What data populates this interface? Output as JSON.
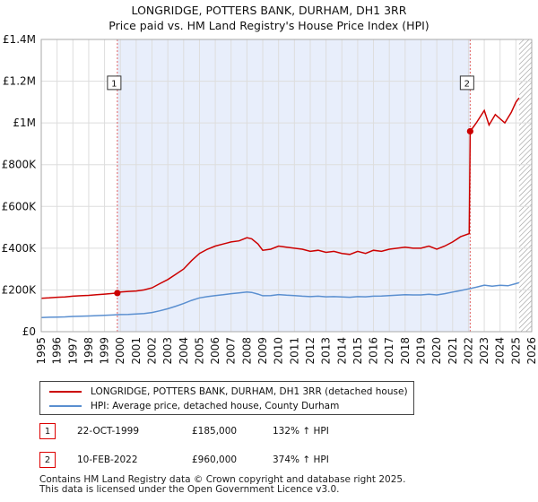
{
  "chart_data": {
    "type": "line",
    "title": "LONGRIDGE, POTTERS BANK, DURHAM, DH1 3RR",
    "subtitle": "Price paid vs. HM Land Registry's House Price Index (HPI)",
    "xlabel": "",
    "ylabel": "",
    "xlim": [
      1995,
      2026
    ],
    "ylim": [
      0,
      1400000
    ],
    "x_ticks": [
      "1995",
      "1996",
      "1997",
      "1998",
      "1999",
      "2000",
      "2001",
      "2002",
      "2003",
      "2004",
      "2005",
      "2006",
      "2007",
      "2008",
      "2009",
      "2010",
      "2011",
      "2012",
      "2013",
      "2014",
      "2015",
      "2016",
      "2017",
      "2018",
      "2019",
      "2020",
      "2021",
      "2022",
      "2023",
      "2024",
      "2025",
      "2026"
    ],
    "y_ticks": [
      {
        "value": 0,
        "label": "£0"
      },
      {
        "value": 200000,
        "label": "£200K"
      },
      {
        "value": 400000,
        "label": "£400K"
      },
      {
        "value": 600000,
        "label": "£600K"
      },
      {
        "value": 800000,
        "label": "£800K"
      },
      {
        "value": 1000000,
        "label": "£1M"
      },
      {
        "value": 1200000,
        "label": "£1.2M"
      },
      {
        "value": 1400000,
        "label": "£1.4M"
      }
    ],
    "grid": true,
    "shaded_period": {
      "start": 1999.81,
      "end": 2022.11
    },
    "future_hatch_start": 2025.2,
    "series": [
      {
        "name": "LONGRIDGE, POTTERS BANK, DURHAM, DH1 3RR (detached house)",
        "color": "#cc0000",
        "x": [
          1995,
          1995.5,
          1996,
          1996.5,
          1997,
          1997.5,
          1998,
          1998.5,
          1999,
          1999.81,
          2000,
          2000.5,
          2001,
          2001.5,
          2002,
          2002.5,
          2003,
          2003.5,
          2004,
          2004.5,
          2005,
          2005.5,
          2006,
          2006.5,
          2007,
          2007.5,
          2008,
          2008.3,
          2008.7,
          2009,
          2009.5,
          2010,
          2010.5,
          2011,
          2011.5,
          2012,
          2012.5,
          2013,
          2013.5,
          2014,
          2014.5,
          2015,
          2015.5,
          2016,
          2016.5,
          2017,
          2017.5,
          2018,
          2018.5,
          2019,
          2019.5,
          2020,
          2020.5,
          2021,
          2021.5,
          2022.05,
          2022.11,
          2022.5,
          2023,
          2023.3,
          2023.7,
          2024,
          2024.3,
          2024.7,
          2025,
          2025.2
        ],
        "values": [
          160000,
          162000,
          165000,
          166000,
          170000,
          172000,
          174000,
          177000,
          180000,
          185000,
          190000,
          193000,
          195000,
          200000,
          210000,
          230000,
          250000,
          275000,
          300000,
          340000,
          375000,
          395000,
          410000,
          420000,
          430000,
          435000,
          450000,
          445000,
          420000,
          390000,
          395000,
          410000,
          405000,
          400000,
          395000,
          385000,
          390000,
          380000,
          385000,
          375000,
          370000,
          385000,
          375000,
          390000,
          385000,
          395000,
          400000,
          405000,
          400000,
          400000,
          410000,
          395000,
          410000,
          430000,
          455000,
          470000,
          960000,
          1000000,
          1060000,
          990000,
          1040000,
          1020000,
          1000000,
          1050000,
          1100000,
          1120000
        ]
      },
      {
        "name": "HPI: Average price, detached house, County Durham",
        "color": "#5a8fd0",
        "x": [
          1995,
          1995.5,
          1996,
          1996.5,
          1997,
          1997.5,
          1998,
          1998.5,
          1999,
          1999.5,
          2000,
          2000.5,
          2001,
          2001.5,
          2002,
          2002.5,
          2003,
          2003.5,
          2004,
          2004.5,
          2005,
          2005.5,
          2006,
          2006.5,
          2007,
          2007.5,
          2008,
          2008.3,
          2008.7,
          2009,
          2009.5,
          2010,
          2010.5,
          2011,
          2011.5,
          2012,
          2012.5,
          2013,
          2013.5,
          2014,
          2014.5,
          2015,
          2015.5,
          2016,
          2016.5,
          2017,
          2017.5,
          2018,
          2018.5,
          2019,
          2019.5,
          2020,
          2020.5,
          2021,
          2021.5,
          2022,
          2022.5,
          2023,
          2023.5,
          2024,
          2024.5,
          2025,
          2025.2
        ],
        "values": [
          68000,
          69000,
          70000,
          71000,
          73000,
          74000,
          75000,
          77000,
          78000,
          80000,
          82000,
          83000,
          85000,
          87000,
          92000,
          100000,
          110000,
          122000,
          135000,
          150000,
          162000,
          168000,
          173000,
          177000,
          182000,
          186000,
          190000,
          188000,
          180000,
          172000,
          173000,
          178000,
          175000,
          173000,
          170000,
          168000,
          170000,
          167000,
          168000,
          166000,
          165000,
          168000,
          167000,
          170000,
          171000,
          173000,
          175000,
          177000,
          176000,
          176000,
          179000,
          176000,
          182000,
          190000,
          197000,
          205000,
          213000,
          223000,
          218000,
          222000,
          220000,
          230000,
          235000
        ]
      }
    ],
    "sales": [
      {
        "label": "1",
        "x": 1999.81,
        "value": 185000
      },
      {
        "label": "2",
        "x": 2022.11,
        "value": 960000
      }
    ]
  },
  "legend": {
    "property_label": "LONGRIDGE, POTTERS BANK, DURHAM, DH1 3RR (detached house)",
    "hpi_label": "HPI: Average price, detached house, County Durham"
  },
  "sales_table": [
    {
      "badge": "1",
      "date": "22-OCT-1999",
      "price": "£185,000",
      "hpi": "132% ↑ HPI"
    },
    {
      "badge": "2",
      "date": "10-FEB-2022",
      "price": "£960,000",
      "hpi": "374% ↑ HPI"
    }
  ],
  "footer": {
    "line1": "Contains HM Land Registry data © Crown copyright and database right 2025.",
    "line2": "This data is licensed under the Open Government Licence v3.0."
  },
  "colors": {
    "property": "#cc0000",
    "hpi": "#5a8fd0",
    "shade": "#e8eefb",
    "grid": "#dddddd"
  }
}
